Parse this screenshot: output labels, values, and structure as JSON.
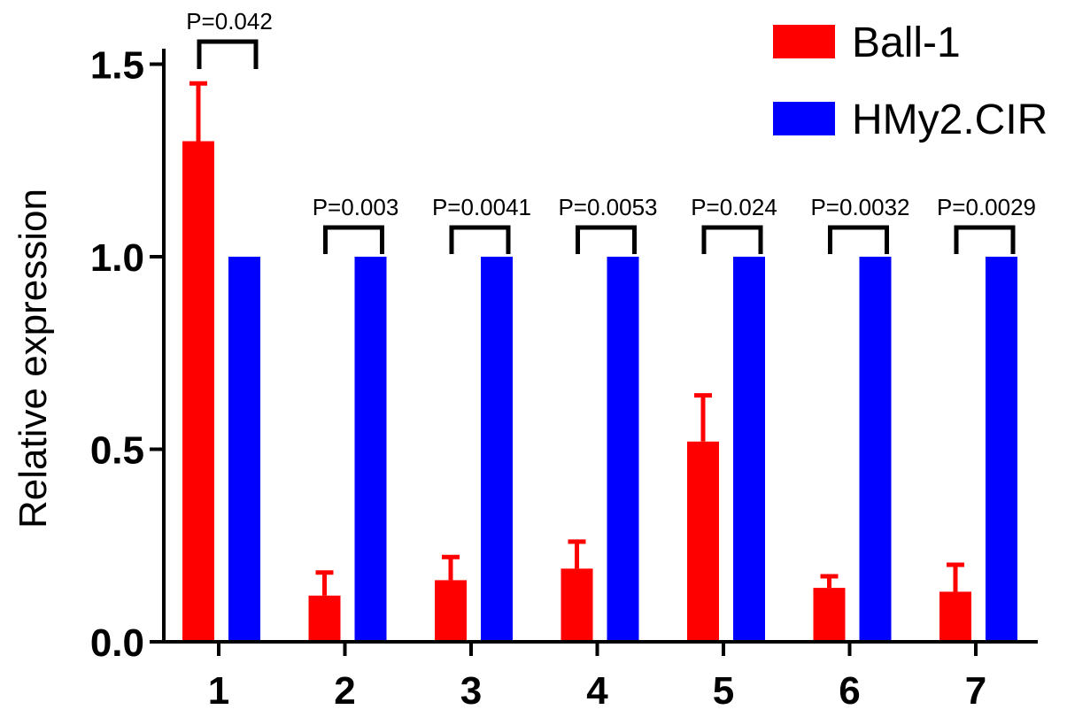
{
  "chart_data": {
    "type": "bar",
    "title": "",
    "xlabel": "",
    "ylabel": "Relative expression",
    "ylim": [
      0,
      1.6
    ],
    "yticks": [
      "0.0",
      "0.5",
      "1.0",
      "1.5"
    ],
    "categories": [
      "1",
      "2",
      "3",
      "4",
      "5",
      "6",
      "7"
    ],
    "series": [
      {
        "name": "Ball-1",
        "color": "#ff0000",
        "values": [
          1.3,
          0.12,
          0.16,
          0.19,
          0.52,
          0.14,
          0.13
        ],
        "errors": [
          0.15,
          0.06,
          0.06,
          0.07,
          0.12,
          0.03,
          0.07
        ]
      },
      {
        "name": "HMy2.CIR",
        "color": "#0000ff",
        "values": [
          1.0,
          1.0,
          1.0,
          1.0,
          1.0,
          1.0,
          1.0
        ],
        "errors": [
          0,
          0,
          0,
          0,
          0,
          0,
          0
        ]
      }
    ],
    "annotations": [
      "P=0.042",
      "P=0.003",
      "P=0.0041",
      "P=0.0053",
      "P=0.024",
      "P=0.0032",
      "P=0.0029"
    ],
    "legend_position": "top-right",
    "grid": false
  }
}
